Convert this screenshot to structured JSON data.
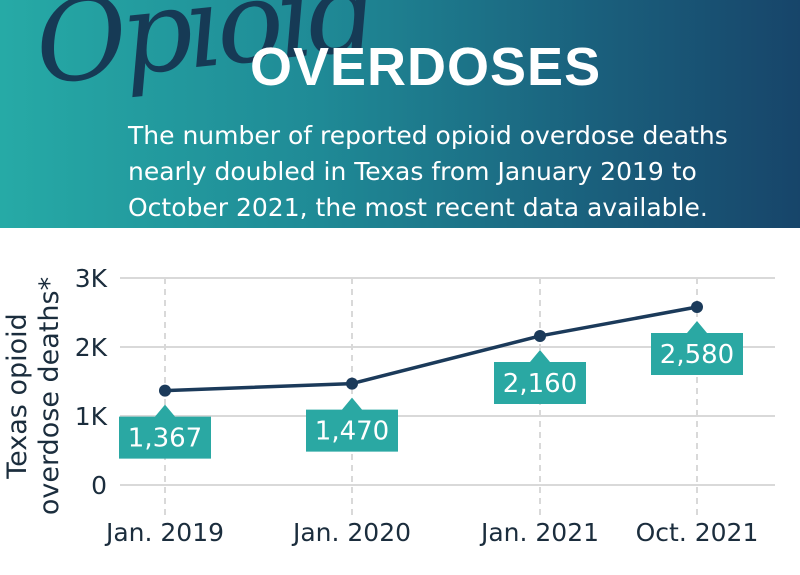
{
  "header": {
    "script_title": "Opioid",
    "title": "OVERDOSES",
    "subtitle": "The number of reported opioid overdose deaths nearly doubled in Texas from January 2019 to October 2021, the most recent data available."
  },
  "colors": {
    "header_teal": "#26aaa6",
    "header_navy": "#17456a",
    "line": "#1b3a5a",
    "label_box": "#2aa8a3",
    "grid": "#d9d9d9",
    "axis_text": "#1b2d3d"
  },
  "chart_data": {
    "type": "line",
    "title": "",
    "ylabel": "Texas opioid overdose deaths*",
    "xlabel": "",
    "categories": [
      "Jan. 2019",
      "Jan. 2020",
      "Jan. 2021",
      "Oct. 2021"
    ],
    "series": [
      {
        "values": [
          1367,
          1470,
          2160,
          2580
        ],
        "labels": [
          "1,367",
          "1,470",
          "2,160",
          "2,580"
        ]
      }
    ],
    "yticks": [
      0,
      1000,
      2000,
      3000
    ],
    "ytick_labels": [
      "0",
      "1K",
      "2K",
      "3K"
    ],
    "ylim": [
      0,
      3000
    ],
    "grid": true
  }
}
